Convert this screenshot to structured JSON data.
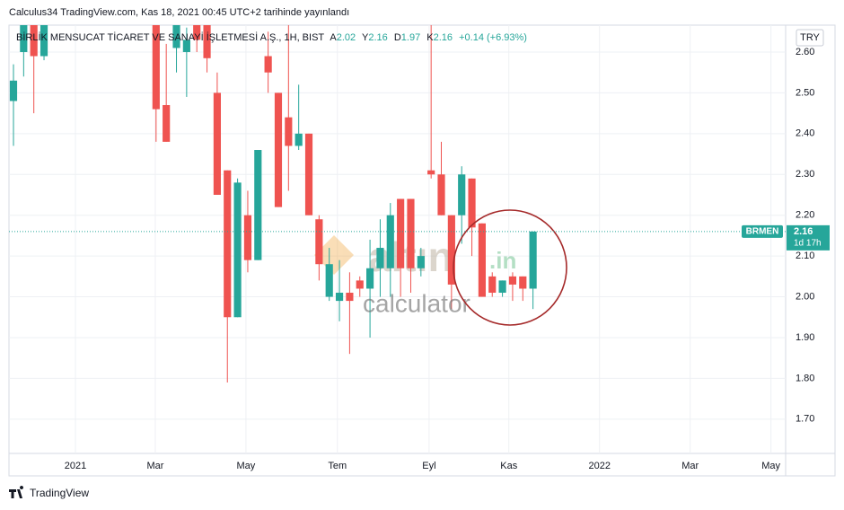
{
  "header": "Calculus34 TradingView.com, Kas 18, 2021 00:45 UTC+2 tarihinde yayınlandı",
  "footer": "TradingView",
  "watermark": {
    "brand": "altın",
    "suffix": ".in",
    "sub": "calculator"
  },
  "chart_data": {
    "type": "candlestick",
    "title": "BİRLİK MENSUCAT TİCARET VE SANAYİ İŞLETMESİ A.Ş., 1H, BIST",
    "ohlc": [
      {
        "label": "A",
        "value": 2.02
      },
      {
        "label": "Y",
        "value": 2.16
      },
      {
        "label": "D",
        "value": 1.97
      },
      {
        "label": "K",
        "value": 2.16
      }
    ],
    "change": "+0.14 (+6.93%)",
    "currency": "TRY",
    "price_tag": {
      "symbol": "BRMEN",
      "value": 2.16,
      "countdown": "1d 17h"
    },
    "up_color": "#26a69a",
    "down_color": "#ef5350",
    "open": [
      2.48,
      2.6,
      2.68,
      2.59,
      null,
      null,
      null,
      null,
      null,
      null,
      null,
      null,
      null,
      null,
      2.68,
      2.47,
      2.61,
      2.6,
      2.68,
      2.68,
      2.5,
      2.31,
      1.95,
      2.2,
      2.09,
      2.59,
      2.5,
      2.44,
      2.37,
      2.4,
      2.19,
      2.0,
      1.99,
      2.01,
      2.04,
      2.02,
      2.07,
      2.07,
      2.24,
      2.24,
      2.07,
      2.31,
      2.3,
      2.2,
      2.2,
      2.29,
      2.18,
      2.05,
      2.01,
      2.05,
      2.05,
      2.02
    ],
    "high": [
      2.57,
      2.7,
      2.7,
      2.7,
      null,
      null,
      null,
      null,
      null,
      null,
      null,
      null,
      null,
      null,
      2.7,
      2.62,
      2.7,
      2.66,
      2.7,
      2.7,
      2.55,
      2.31,
      2.29,
      2.26,
      2.36,
      2.65,
      2.5,
      2.7,
      2.52,
      2.4,
      2.2,
      2.12,
      2.09,
      2.06,
      2.05,
      2.14,
      2.19,
      2.23,
      2.24,
      2.24,
      2.12,
      2.7,
      2.38,
      2.2,
      2.32,
      2.29,
      2.18,
      2.06,
      2.04,
      2.06,
      2.05,
      2.16
    ],
    "low": [
      2.37,
      2.54,
      2.45,
      2.58,
      null,
      null,
      null,
      null,
      null,
      null,
      null,
      null,
      null,
      null,
      2.38,
      2.38,
      2.55,
      2.49,
      2.6,
      2.55,
      2.25,
      1.79,
      1.95,
      2.06,
      2.09,
      2.5,
      2.22,
      2.26,
      2.36,
      2.2,
      2.04,
      1.99,
      1.94,
      1.86,
      2.0,
      1.9,
      2.0,
      2.0,
      2.0,
      2.01,
      2.05,
      2.29,
      2.2,
      1.97,
      2.13,
      2.1,
      2.0,
      2.0,
      2.0,
      1.99,
      1.99,
      1.97
    ],
    "close": [
      2.53,
      2.68,
      2.59,
      2.68,
      null,
      null,
      null,
      null,
      null,
      null,
      null,
      null,
      null,
      null,
      2.46,
      2.38,
      2.68,
      2.63,
      2.63,
      2.585,
      2.25,
      1.95,
      2.28,
      2.09,
      2.36,
      2.55,
      2.22,
      2.37,
      2.4,
      2.2,
      2.08,
      2.08,
      2.01,
      1.99,
      2.02,
      2.07,
      2.12,
      2.2,
      2.07,
      2.07,
      2.1,
      2.3,
      2.2,
      2.03,
      2.3,
      2.17,
      2.0,
      2.01,
      2.04,
      2.03,
      2.02,
      2.16
    ],
    "xlim": [
      -0.44,
      75.8
    ],
    "xticks": [
      {
        "value": 6.08,
        "label": "2021"
      },
      {
        "value": 13.92,
        "label": "Mar"
      },
      {
        "value": 22.82,
        "label": "May"
      },
      {
        "value": 31.8,
        "label": "Tem"
      },
      {
        "value": 40.8,
        "label": "Eyl"
      },
      {
        "value": 48.63,
        "label": "Kas"
      },
      {
        "value": 57.53,
        "label": "2022"
      },
      {
        "value": 66.43,
        "label": "Mar"
      },
      {
        "value": 74.36,
        "label": "May"
      }
    ],
    "ylim": [
      1.616,
      2.666
    ],
    "yticks": [
      {
        "value": 2.6,
        "label": "2.60"
      },
      {
        "value": 2.5,
        "label": "2.50"
      },
      {
        "value": 2.4,
        "label": "2.40"
      },
      {
        "value": 2.3,
        "label": "2.30"
      },
      {
        "value": 2.2,
        "label": "2.20"
      },
      {
        "value": 2.1,
        "label": "2.10"
      },
      {
        "value": 2,
        "label": "2.00"
      },
      {
        "value": 1.9,
        "label": "1.90"
      },
      {
        "value": 1.8,
        "label": "1.80"
      },
      {
        "value": 1.7,
        "label": "1.70"
      }
    ],
    "grid": true
  }
}
